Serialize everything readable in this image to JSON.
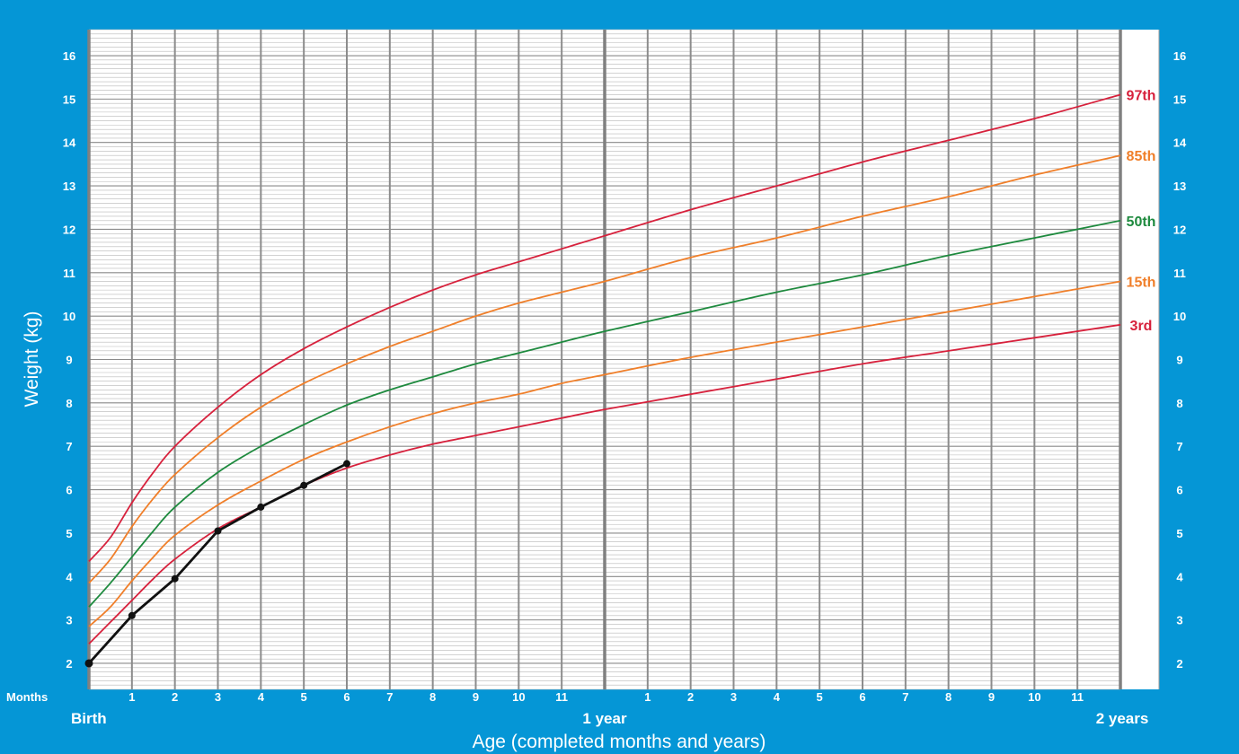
{
  "chart_data": {
    "type": "line",
    "title": "",
    "xlabel": "Age (completed months and years)",
    "ylabel": "Weight (kg)",
    "months_label": "Months",
    "x_unit": "months",
    "xlim": [
      0,
      24
    ],
    "ylim": [
      1.4,
      16.6
    ],
    "y_ticks": [
      2,
      3,
      4,
      5,
      6,
      7,
      8,
      9,
      10,
      11,
      12,
      13,
      14,
      15,
      16
    ],
    "month_ticks": [
      {
        "x": 1,
        "label": "1"
      },
      {
        "x": 2,
        "label": "2"
      },
      {
        "x": 3,
        "label": "3"
      },
      {
        "x": 4,
        "label": "4"
      },
      {
        "x": 5,
        "label": "5"
      },
      {
        "x": 6,
        "label": "6"
      },
      {
        "x": 7,
        "label": "7"
      },
      {
        "x": 8,
        "label": "8"
      },
      {
        "x": 9,
        "label": "9"
      },
      {
        "x": 10,
        "label": "10"
      },
      {
        "x": 11,
        "label": "11"
      },
      {
        "x": 13,
        "label": "1"
      },
      {
        "x": 14,
        "label": "2"
      },
      {
        "x": 15,
        "label": "3"
      },
      {
        "x": 16,
        "label": "4"
      },
      {
        "x": 17,
        "label": "5"
      },
      {
        "x": 18,
        "label": "6"
      },
      {
        "x": 19,
        "label": "7"
      },
      {
        "x": 20,
        "label": "8"
      },
      {
        "x": 21,
        "label": "9"
      },
      {
        "x": 22,
        "label": "10"
      },
      {
        "x": 23,
        "label": "11"
      }
    ],
    "year_ticks": [
      {
        "x": 0,
        "label": "Birth"
      },
      {
        "x": 12,
        "label": "1 year"
      },
      {
        "x": 24,
        "label": "2 years"
      }
    ],
    "grid": true,
    "percentiles": [
      {
        "name": "97th",
        "color": "#d7213c",
        "x": [
          0,
          0.5,
          1,
          1.5,
          2,
          3,
          4,
          5,
          6,
          7,
          8,
          9,
          10,
          11,
          12,
          14,
          16,
          18,
          20,
          22,
          24
        ],
        "y": [
          4.35,
          4.9,
          5.7,
          6.4,
          7.0,
          7.9,
          8.65,
          9.25,
          9.75,
          10.2,
          10.6,
          10.95,
          11.25,
          11.55,
          11.85,
          12.45,
          13.0,
          13.55,
          14.05,
          14.55,
          15.1
        ]
      },
      {
        "name": "85th",
        "color": "#f07f2a",
        "x": [
          0,
          0.5,
          1,
          1.5,
          2,
          3,
          4,
          5,
          6,
          7,
          8,
          9,
          10,
          11,
          12,
          14,
          16,
          18,
          20,
          22,
          24
        ],
        "y": [
          3.85,
          4.4,
          5.15,
          5.8,
          6.35,
          7.2,
          7.9,
          8.45,
          8.9,
          9.3,
          9.65,
          10.0,
          10.3,
          10.55,
          10.8,
          11.35,
          11.8,
          12.3,
          12.75,
          13.25,
          13.7
        ]
      },
      {
        "name": "50th",
        "color": "#1e8a3e",
        "x": [
          0,
          0.5,
          1,
          1.5,
          2,
          3,
          4,
          5,
          6,
          7,
          8,
          9,
          10,
          11,
          12,
          14,
          16,
          18,
          20,
          22,
          24
        ],
        "y": [
          3.3,
          3.85,
          4.45,
          5.05,
          5.6,
          6.4,
          7.0,
          7.5,
          7.95,
          8.3,
          8.6,
          8.9,
          9.15,
          9.4,
          9.65,
          10.1,
          10.55,
          10.95,
          11.4,
          11.8,
          12.2
        ]
      },
      {
        "name": "15th",
        "color": "#f07f2a",
        "x": [
          0,
          0.5,
          1,
          1.5,
          2,
          3,
          4,
          5,
          6,
          7,
          8,
          9,
          10,
          11,
          12,
          14,
          16,
          18,
          20,
          22,
          24
        ],
        "y": [
          2.85,
          3.3,
          3.9,
          4.45,
          4.95,
          5.65,
          6.2,
          6.7,
          7.1,
          7.45,
          7.75,
          8.0,
          8.2,
          8.45,
          8.65,
          9.05,
          9.4,
          9.75,
          10.1,
          10.45,
          10.8
        ]
      },
      {
        "name": "3rd",
        "color": "#d7213c",
        "x": [
          0,
          0.5,
          1,
          1.5,
          2,
          3,
          4,
          5,
          6,
          7,
          8,
          9,
          10,
          11,
          12,
          14,
          16,
          18,
          20,
          22,
          24
        ],
        "y": [
          2.45,
          2.95,
          3.45,
          3.95,
          4.4,
          5.1,
          5.6,
          6.1,
          6.5,
          6.8,
          7.05,
          7.25,
          7.45,
          7.65,
          7.85,
          8.2,
          8.55,
          8.9,
          9.2,
          9.5,
          9.8
        ]
      }
    ],
    "child_series": {
      "color": "#111111",
      "x": [
        0,
        1,
        2,
        3,
        4,
        5,
        6
      ],
      "y": [
        2.0,
        3.1,
        3.95,
        5.05,
        5.6,
        6.1,
        6.6
      ]
    }
  }
}
